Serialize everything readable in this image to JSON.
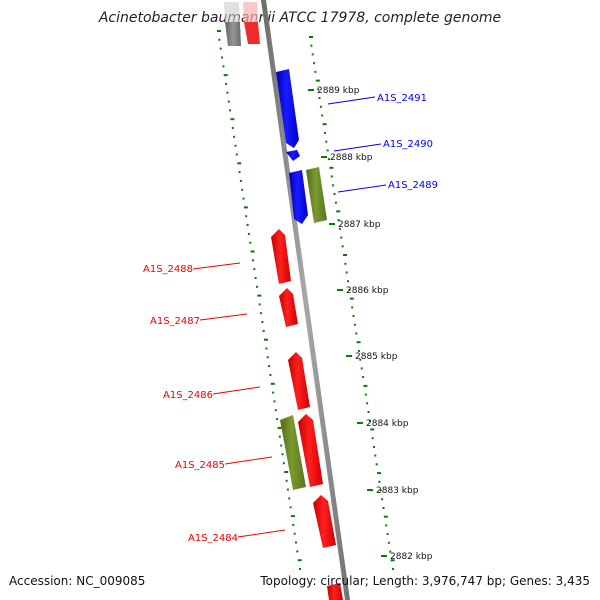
{
  "title": "Acinetobacter baumannii ATCC 17978, complete genome",
  "footer": {
    "accession": "Accession: NC_009085",
    "topology": "Topology: circular; Length: 3,976,747 bp; Genes: 3,435"
  },
  "ticks": [
    {
      "label": "2889 kbp"
    },
    {
      "label": "2888 kbp"
    },
    {
      "label": "2887 kbp"
    },
    {
      "label": "2886 kbp"
    },
    {
      "label": "2885 kbp"
    },
    {
      "label": "2884 kbp"
    },
    {
      "label": "2883 kbp"
    },
    {
      "label": "2882 kbp"
    }
  ],
  "genes": [
    {
      "name": "A1S_2491",
      "strand": "forward",
      "color": "#0000ee"
    },
    {
      "name": "A1S_2490",
      "strand": "forward",
      "color": "#0000ee"
    },
    {
      "name": "A1S_2489",
      "strand": "forward",
      "color": "#0000ee"
    },
    {
      "name": "A1S_2488",
      "strand": "reverse",
      "color": "#ee0000"
    },
    {
      "name": "A1S_2487",
      "strand": "reverse",
      "color": "#ee0000"
    },
    {
      "name": "A1S_2486",
      "strand": "reverse",
      "color": "#ee0000"
    },
    {
      "name": "A1S_2485",
      "strand": "reverse",
      "color": "#ee0000"
    },
    {
      "name": "A1S_2484",
      "strand": "reverse",
      "color": "#ee0000"
    }
  ],
  "colors": {
    "backbone": "#888888",
    "gc_ticks": "#0a7a0a",
    "other_feature": "#6b8e23",
    "forward_gene": "#0000ee",
    "reverse_gene": "#ee0000"
  }
}
